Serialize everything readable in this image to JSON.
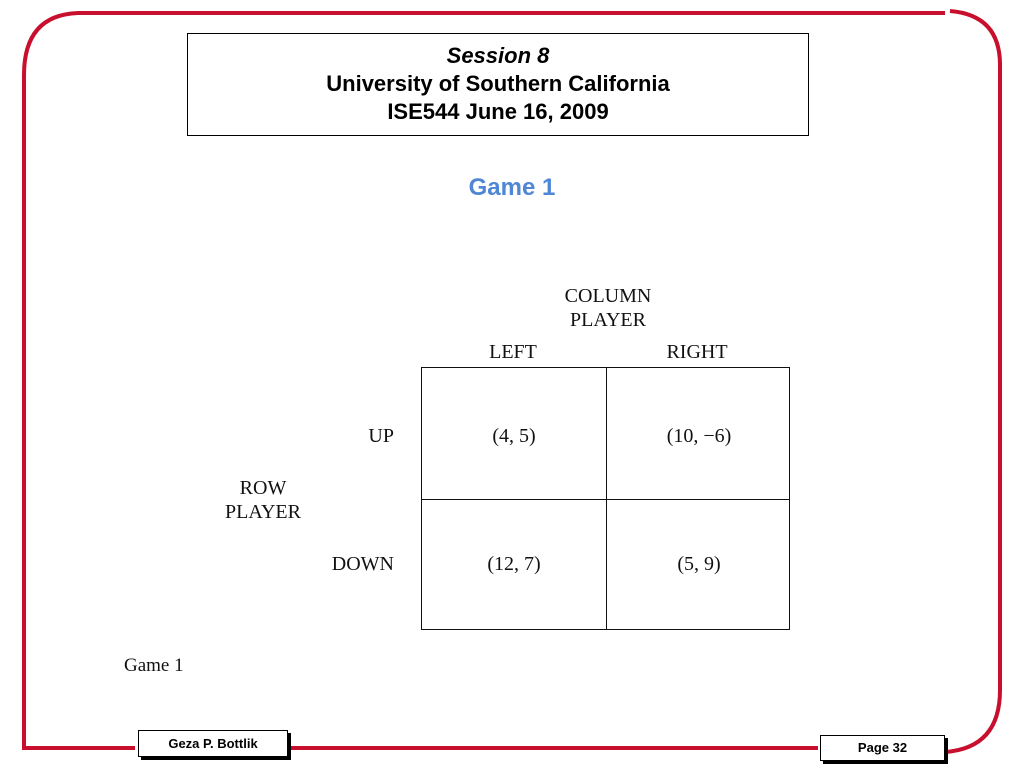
{
  "header": {
    "session": "Session 8",
    "university": "University of Southern California",
    "course": "ISE544 June 16, 2009"
  },
  "slide_title": "Game 1",
  "figure": {
    "column_player_line1": "COLUMN",
    "column_player_line2": "PLAYER",
    "row_player_line1": "ROW",
    "row_player_line2": "PLAYER",
    "col_left": "LEFT",
    "col_right": "RIGHT",
    "row_up": "UP",
    "row_down": "DOWN",
    "cells": {
      "up_left": "(4, 5)",
      "up_right": "(10, −6)",
      "down_left": "(12, 7)",
      "down_right": "(5, 9)"
    },
    "caption": "Game 1"
  },
  "footer": {
    "author": "Geza P. Bottlik",
    "page": "Page 32"
  },
  "colors": {
    "frame": "#c8102e",
    "title": "#4f86d6"
  }
}
